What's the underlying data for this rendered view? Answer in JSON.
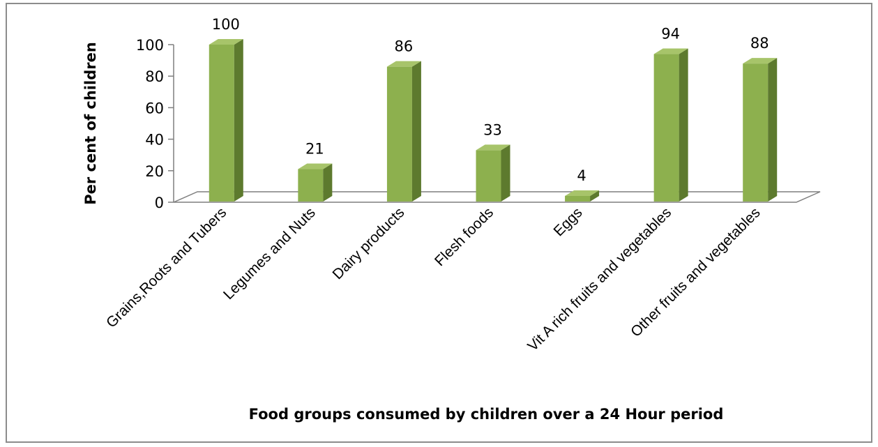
{
  "chart_data": {
    "type": "bar",
    "categories": [
      "Grains,Roots and Tubers",
      "Legumes and Nuts",
      "Dairy products",
      "Flesh foods",
      "Eggs",
      "Vit A rich fruits and vegetables",
      "Other fruits and vegetables"
    ],
    "values": [
      100,
      21,
      86,
      33,
      4,
      94,
      88
    ],
    "data_labels": [
      "100",
      "21",
      "86",
      "33",
      "4",
      "94",
      "88"
    ],
    "title": "",
    "xlabel": "Food groups consumed by children over a 24 Hour period",
    "ylabel": "Per cent of children",
    "ylim": [
      0,
      100
    ],
    "yticks": [
      "0",
      "20",
      "40",
      "60",
      "80",
      "100"
    ],
    "grid": false,
    "legend": "none",
    "bar_color": "#8db04e",
    "bar_side_color": "#5d7a2e",
    "bar_top_color": "#a7c46a"
  }
}
